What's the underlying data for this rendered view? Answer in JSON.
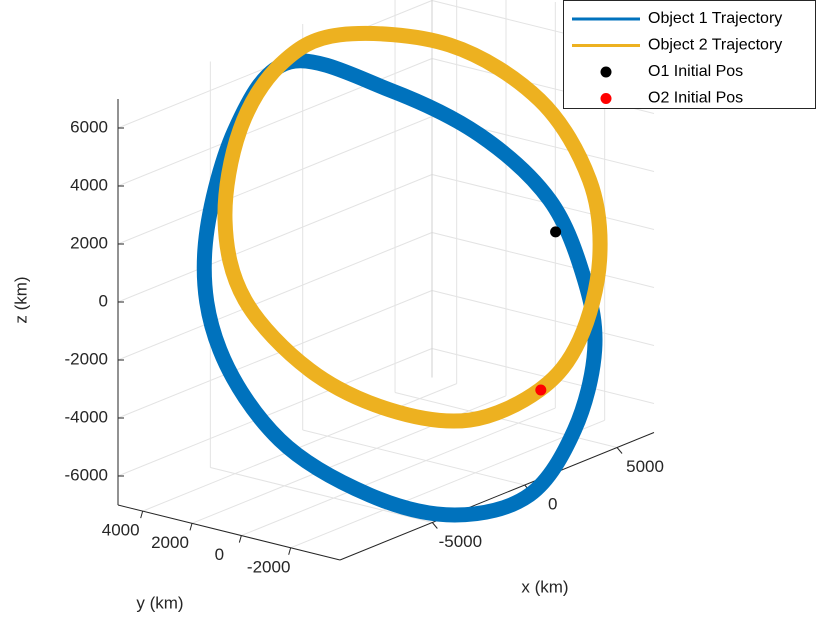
{
  "chart_data": {
    "type": "line3d",
    "xlabel": "x (km)",
    "ylabel": "y (km)",
    "zlabel": "z (km)",
    "xlim": [
      -10000,
      7000
    ],
    "ylim": [
      -4000,
      5000
    ],
    "zlim": [
      -7000,
      7000
    ],
    "xticks": [
      -5000,
      0,
      5000
    ],
    "yticks": [
      -2000,
      0,
      2000,
      4000
    ],
    "zticks": [
      -6000,
      -4000,
      -2000,
      0,
      2000,
      4000,
      6000
    ],
    "grid": true,
    "legend": "top-right",
    "series": [
      {
        "name": "Object 1 Trajectory",
        "color": "#0072bd",
        "mode": "line",
        "x": [
          -4420,
          -1180,
          1740,
          4010,
          5150,
          5470,
          4820,
          3360,
          930,
          -1830,
          -4750,
          -6690,
          -7180,
          -6210
        ],
        "y": [
          2210,
          590,
          -870,
          -2010,
          -2570,
          -2740,
          -2410,
          -1680,
          -470,
          910,
          2370,
          3350,
          3590,
          3100
        ],
        "z": [
          7420,
          5960,
          3960,
          1370,
          -1560,
          -4030,
          -6680,
          -8700,
          -9020,
          -7910,
          -5560,
          -2160,
          1360,
          5350
        ]
      },
      {
        "name": "Object 2 Trajectory",
        "color": "#edb120",
        "mode": "line",
        "x": [
          -2800,
          770,
          3690,
          5310,
          5630,
          4980,
          3690,
          1420,
          -1180,
          -3770,
          -5880,
          -6530,
          -6040,
          -4740
        ],
        "y": [
          1400,
          -380,
          -1840,
          -2650,
          -2820,
          -2490,
          -1840,
          -710,
          590,
          1890,
          2940,
          3260,
          3020,
          2370
        ],
        "z": [
          8110,
          7210,
          4870,
          1860,
          -950,
          -3610,
          -5130,
          -5820,
          -5070,
          -3300,
          -560,
          2300,
          5330,
          7370
        ]
      },
      {
        "name": "O1 Initial Pos",
        "color": "#000000",
        "mode": "marker",
        "x": [
          4210
        ],
        "y": [
          -2100
        ],
        "z": [
          240
        ]
      },
      {
        "name": "O2 Initial Pos",
        "color": "#ff0000",
        "mode": "marker",
        "x": [
          3730
        ],
        "y": [
          -1860
        ],
        "z": [
          -5140
        ]
      }
    ]
  }
}
